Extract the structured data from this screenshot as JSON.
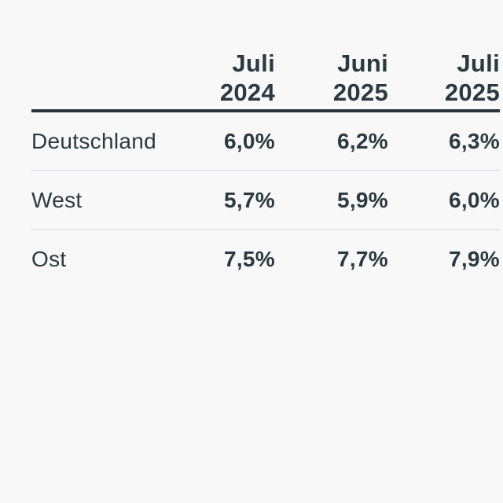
{
  "colors": {
    "background": "#f8f8f8",
    "text": "#2b3940",
    "header_rule": "#2b333a",
    "row_separator": "#e4e6e9"
  },
  "chart_data": {
    "type": "table",
    "title": "",
    "columns": [
      {
        "line1": "Juli",
        "line2": "2024"
      },
      {
        "line1": "Juni",
        "line2": "2025"
      },
      {
        "line1": "Juli",
        "line2": "2025"
      }
    ],
    "column_labels": [
      "Juli 2024",
      "Juni 2025",
      "Juli 2025"
    ],
    "rows": [
      {
        "label": "Deutschland",
        "values": [
          "6,0%",
          "6,2%",
          "6,3%"
        ]
      },
      {
        "label": "West",
        "values": [
          "5,7%",
          "5,9%",
          "6,0%"
        ]
      },
      {
        "label": "Ost",
        "values": [
          "7,5%",
          "7,7%",
          "7,9%"
        ]
      }
    ],
    "layout_hints": {
      "third_column_clipped": true,
      "value_alignment": "right",
      "label_alignment": "left"
    }
  }
}
